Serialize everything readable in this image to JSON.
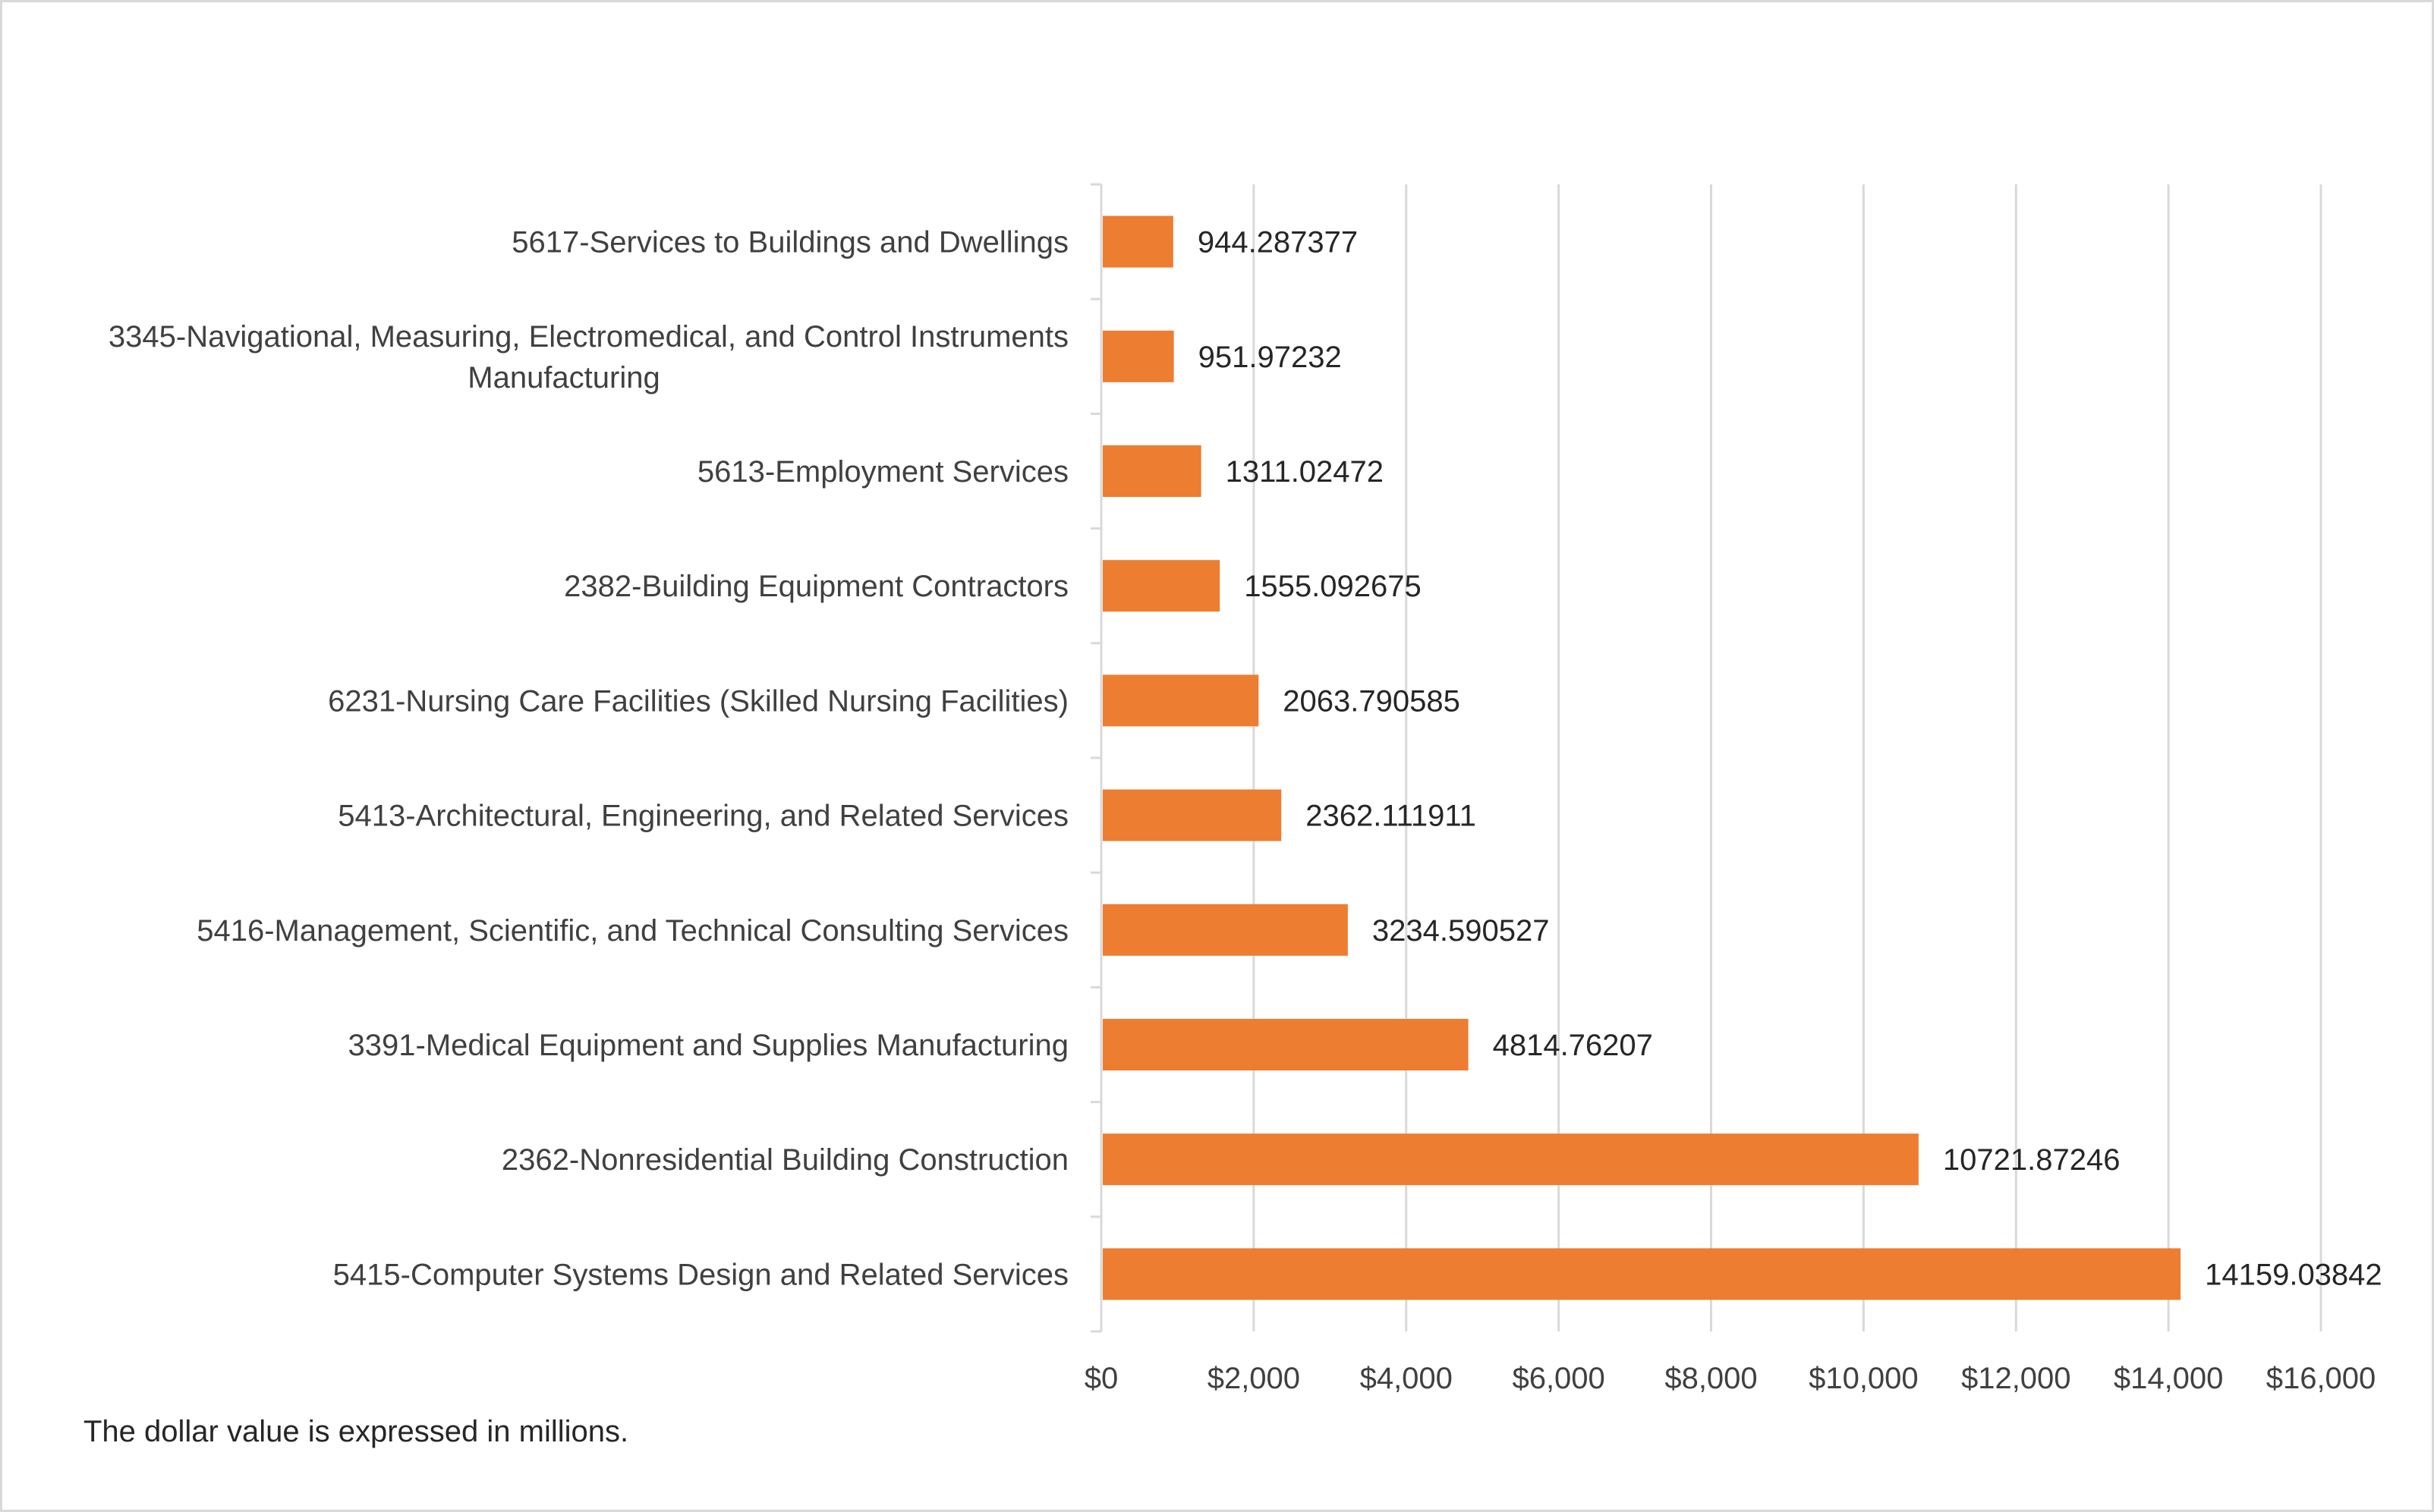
{
  "chart_data": {
    "type": "bar",
    "orientation": "horizontal",
    "title": "",
    "xlabel": "",
    "ylabel": "",
    "xlim": [
      0,
      16000
    ],
    "x_ticks": [
      0,
      2000,
      4000,
      6000,
      8000,
      10000,
      12000,
      14000,
      16000
    ],
    "x_tick_labels": [
      "$0",
      "$2,000",
      "$4,000",
      "$6,000",
      "$8,000",
      "$10,000",
      "$12,000",
      "$14,000",
      "$16,000"
    ],
    "grid": "vertical",
    "legend": "none",
    "bar_color": "#ED7D31",
    "categories": [
      [
        "5617-Services to Buildings and Dwellings"
      ],
      [
        "3345-Navigational, Measuring, Electromedical, and Control Instruments",
        "Manufacturing"
      ],
      [
        "5613-Employment Services"
      ],
      [
        "2382-Building Equipment Contractors"
      ],
      [
        "6231-Nursing Care Facilities (Skilled Nursing Facilities)"
      ],
      [
        "5413-Architectural, Engineering, and Related Services"
      ],
      [
        "5416-Management, Scientific, and Technical Consulting Services"
      ],
      [
        "3391-Medical Equipment and Supplies Manufacturing"
      ],
      [
        "2362-Nonresidential Building Construction"
      ],
      [
        "5415-Computer Systems Design and Related Services"
      ]
    ],
    "values": [
      944.287377,
      951.97232,
      1311.02472,
      1555.092675,
      2063.790585,
      2362.111911,
      3234.590527,
      4814.76207,
      10721.87246,
      14159.03842
    ],
    "data_labels": [
      "944.287377",
      "951.97232",
      "1311.02472",
      "1555.092675",
      "2063.790585",
      "2362.111911",
      "3234.590527",
      "4814.76207",
      "10721.87246",
      "14159.03842"
    ]
  },
  "footnote": "The dollar value is expressed in millions."
}
